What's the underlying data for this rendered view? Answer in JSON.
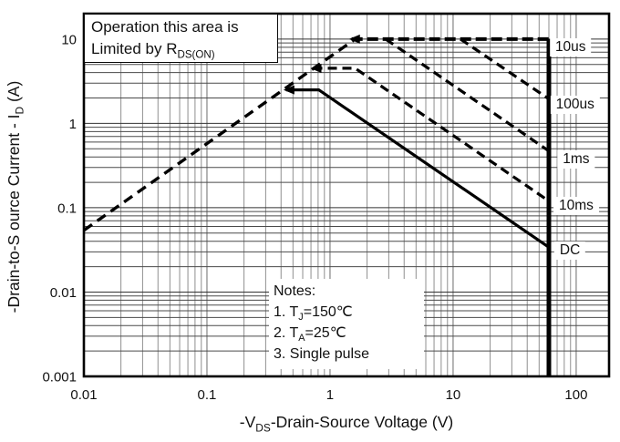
{
  "chart_data": {
    "type": "line",
    "title": "",
    "xlabel": "-VDS-Drain-Source Voltage (V)",
    "ylabel": "-Drain-to-Source Current - ID (A)",
    "x_scale": "log",
    "y_scale": "log",
    "xlim": [
      0.01,
      185
    ],
    "ylim": [
      0.001,
      20
    ],
    "x_ticks": [
      0.01,
      0.1,
      1,
      10,
      100
    ],
    "x_tick_labels": [
      "0.01",
      "0.1",
      "1",
      "10",
      "100"
    ],
    "y_ticks": [
      10,
      1,
      0.1,
      0.01,
      0.001
    ],
    "y_tick_labels": [
      "10",
      "1",
      "0.1",
      "0.01",
      "0.001"
    ],
    "grid": {
      "minor_log": true,
      "legend": "none"
    },
    "xlabel_parts": [
      {
        "t": "-V"
      },
      {
        "t": "DS",
        "sub": true
      },
      {
        "t": "-Drain-Source Voltage (V)"
      }
    ],
    "ylabel_parts": [
      {
        "t": "-Drain-to-S ource Current - I"
      },
      {
        "t": "D",
        "sub": true
      },
      {
        "t": " (A)"
      }
    ],
    "series": [
      {
        "name": "rdson-limit-line",
        "label": "",
        "dash": "11,7",
        "width": 3.4,
        "points": [
          [
            0.01,
            0.054
          ],
          [
            1.6,
            10
          ]
        ]
      },
      {
        "name": "pulse-10us",
        "label": "10us",
        "dash": "12,5",
        "width": 4,
        "arrow_at_start": true,
        "points": [
          [
            1.5,
            10
          ],
          [
            60,
            10
          ]
        ]
      },
      {
        "name": "vdss-boundary",
        "label": "",
        "dash": "",
        "width": 5,
        "points": [
          [
            60,
            10
          ],
          [
            60,
            0.001
          ]
        ]
      },
      {
        "name": "pulse-100us",
        "label": "100us",
        "dash": "10,6",
        "width": 3.2,
        "points": [
          [
            11.5,
            10
          ],
          [
            60,
            1.95
          ]
        ]
      },
      {
        "name": "pulse-1ms",
        "label": "1ms",
        "dash": "10,6",
        "width": 3.2,
        "points": [
          [
            2.83,
            10
          ],
          [
            60,
            0.47
          ]
        ]
      },
      {
        "name": "pulse-10ms",
        "label": "10ms",
        "dash": "10,6",
        "width": 3.2,
        "arrow_at_start": true,
        "points": [
          [
            0.73,
            4.5
          ],
          [
            1.6,
            4.5
          ],
          [
            60,
            0.12
          ]
        ]
      },
      {
        "name": "dc",
        "label": "DC",
        "dash": "",
        "width": 3.2,
        "arrow_at_start": true,
        "points": [
          [
            0.44,
            2.5
          ],
          [
            0.81,
            2.5
          ],
          [
            60,
            0.034
          ]
        ]
      }
    ],
    "curve_labels": [
      {
        "text": "10us",
        "x": 90,
        "y": 8.0
      },
      {
        "text": "100us",
        "x": 98,
        "y": 1.66
      },
      {
        "text": "1ms",
        "x": 100,
        "y": 0.37
      },
      {
        "text": "10ms",
        "x": 100,
        "y": 0.105
      },
      {
        "text": "DC",
        "x": 89,
        "y": 0.031
      }
    ],
    "colors": {
      "curve": "#000000",
      "grid_h": "#4a4a4a",
      "grid_v": "#8f8f8f",
      "grid_major_h": "#333333",
      "grid_major_v": "#6b6b6b",
      "border": "#000000"
    }
  },
  "annotation": {
    "line1": "Operation this area is",
    "line2_parts": [
      {
        "t": "Limited  by R"
      },
      {
        "t": "DS(ON)",
        "sub": true
      }
    ]
  },
  "notes": {
    "title": "Notes:",
    "lines": [
      [
        {
          "t": "1. T"
        },
        {
          "t": "J",
          "sub": true
        },
        {
          "t": "=150℃"
        }
      ],
      [
        {
          "t": "2. T"
        },
        {
          "t": "A",
          "sub": true
        },
        {
          "t": "=25℃"
        }
      ],
      [
        {
          "t": "3. Single pulse"
        }
      ]
    ]
  }
}
